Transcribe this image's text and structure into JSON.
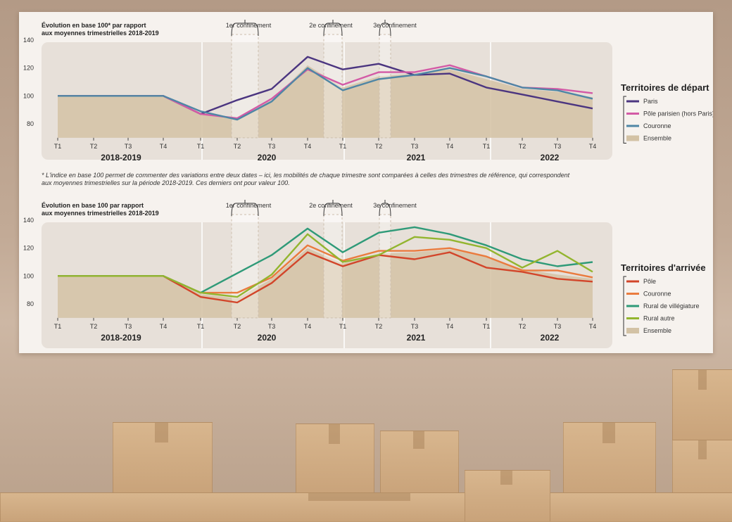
{
  "chart_data": [
    {
      "type": "line",
      "ylabel_lines": [
        "Évolution en base 100* par rapport",
        "aux moyennes trimestrielles 2018-2019"
      ],
      "ylim": [
        70,
        140
      ],
      "yticks": [
        80,
        100,
        120,
        140
      ],
      "quarters": [
        "T1",
        "T2",
        "T3",
        "T4",
        "T1",
        "T2",
        "T3",
        "T4",
        "T1",
        "T2",
        "T3",
        "T4",
        "T1",
        "T2",
        "T3",
        "T4"
      ],
      "years": [
        "2018-2019",
        "2020",
        "2021",
        "2022"
      ],
      "lockdowns": [
        "1er confinement",
        "2e confinement",
        "3e confinement"
      ],
      "legend_title": "Territoires de départ",
      "series": [
        {
          "name": "Paris",
          "color": "#4b3580",
          "values": [
            100,
            100,
            100,
            100,
            87,
            97,
            105,
            128,
            119,
            123,
            115,
            116,
            106,
            101,
            96,
            91
          ]
        },
        {
          "name": "Pôle parisien (hors Paris)",
          "color": "#d35aa6",
          "values": [
            100,
            100,
            100,
            100,
            87,
            84,
            98,
            119,
            108,
            117,
            117,
            122,
            114,
            106,
            105,
            102
          ]
        },
        {
          "name": "Couronne",
          "color": "#4f86a5",
          "values": [
            100,
            100,
            100,
            100,
            89,
            83,
            96,
            120,
            104,
            112,
            115,
            120,
            114,
            106,
            104,
            98
          ]
        }
      ],
      "ensemble": {
        "name": "Ensemble",
        "values": [
          100,
          100,
          100,
          100,
          88,
          84,
          97,
          122,
          106,
          114,
          116,
          119,
          112,
          105,
          103,
          99
        ]
      },
      "footnote_lines": [
        "* L'indice en base 100 permet de commenter des variations entre deux dates – ici, les mobilités de chaque trimestre sont comparées à celles des trimestres de référence, qui correspondent",
        "aux moyennes trimestrielles sur la période 2018-2019. Ces derniers ont pour valeur 100."
      ]
    },
    {
      "type": "line",
      "ylabel_lines": [
        "Évolution en base 100 par rapport",
        "aux moyennes trimestrielles 2018-2019"
      ],
      "ylim": [
        70,
        140
      ],
      "yticks": [
        80,
        100,
        120,
        140
      ],
      "quarters": [
        "T1",
        "T2",
        "T3",
        "T4",
        "T1",
        "T2",
        "T3",
        "T4",
        "T1",
        "T2",
        "T3",
        "T4",
        "T1",
        "T2",
        "T3",
        "T4"
      ],
      "years": [
        "2018-2019",
        "2020",
        "2021",
        "2022"
      ],
      "lockdowns": [
        "1er confinement",
        "2e confinement",
        "3e confinement"
      ],
      "legend_title": "Territoires d'arrivée",
      "series": [
        {
          "name": "Pôle",
          "color": "#d2452a",
          "values": [
            100,
            100,
            100,
            100,
            85,
            81,
            95,
            117,
            107,
            115,
            112,
            117,
            106,
            103,
            98,
            96
          ]
        },
        {
          "name": "Couronne",
          "color": "#ea7b3e",
          "values": [
            100,
            100,
            100,
            100,
            88,
            88,
            99,
            122,
            111,
            118,
            118,
            120,
            114,
            104,
            104,
            99
          ]
        },
        {
          "name": "Rural de villégiature",
          "color": "#2f9a78",
          "values": [
            100,
            100,
            100,
            100,
            88,
            102,
            115,
            134,
            117,
            131,
            135,
            130,
            122,
            112,
            107,
            110
          ]
        },
        {
          "name": "Rural autre",
          "color": "#93b52f",
          "values": [
            100,
            100,
            100,
            100,
            88,
            85,
            101,
            130,
            110,
            115,
            128,
            126,
            120,
            106,
            118,
            103
          ]
        }
      ],
      "ensemble": {
        "name": "Ensemble",
        "values": [
          100,
          100,
          100,
          100,
          87,
          84,
          98,
          120,
          109,
          116,
          117,
          119,
          114,
          105,
          101,
          98
        ]
      }
    }
  ]
}
